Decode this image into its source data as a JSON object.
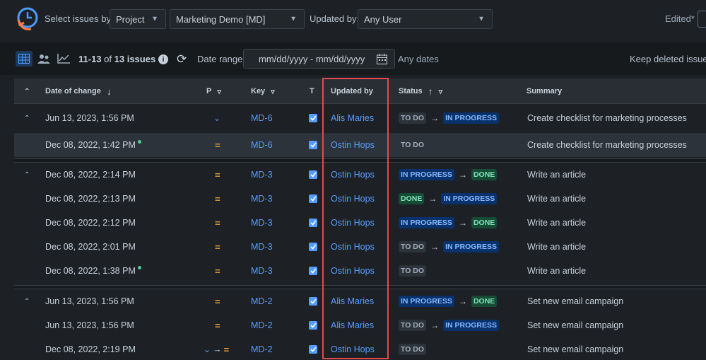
{
  "filters": {
    "select_issues_by_label": "Select issues by:",
    "select_issues_by_value": "Project",
    "project_value": "Marketing Demo [MD]",
    "updated_by_label": "Updated by:",
    "updated_by_value": "Any User",
    "edited_label": "Edited*"
  },
  "toolbar": {
    "issue_range": "11-13",
    "issue_of": "of",
    "issue_total": "13 issues",
    "date_range_label": "Date range:",
    "date_range_placeholder": "mm/dd/yyyy - mm/dd/yyyy",
    "any_dates": "Any dates",
    "keep_deleted": "Keep deleted issues"
  },
  "columns": {
    "date": "Date of change",
    "priority": "P",
    "key": "Key",
    "type": "T",
    "updated_by": "Updated by",
    "status": "Status",
    "summary": "Summary"
  },
  "rows": [
    {
      "date": "Jun 13, 2023, 1:56 PM",
      "priority": "low",
      "key": "MD-6",
      "user": "Alis Maries",
      "from": "TO DO",
      "to": "IN PROGRESS",
      "summary": "Create checklist for marketing processes"
    },
    {
      "date": "Dec 08, 2022, 1:42 PM",
      "priority": "medium",
      "key": "MD-6",
      "user": "Ostin Hops",
      "from": "TO DO",
      "to": "",
      "summary": "Create checklist for marketing processes"
    },
    {
      "date": "Dec 08, 2022, 2:14 PM",
      "priority": "medium",
      "key": "MD-3",
      "user": "Ostin Hops",
      "from": "IN PROGRESS",
      "to": "DONE",
      "summary": "Write an article"
    },
    {
      "date": "Dec 08, 2022, 2:13 PM",
      "priority": "medium",
      "key": "MD-3",
      "user": "Ostin Hops",
      "from": "DONE",
      "to": "IN PROGRESS",
      "summary": "Write an article"
    },
    {
      "date": "Dec 08, 2022, 2:12 PM",
      "priority": "medium",
      "key": "MD-3",
      "user": "Ostin Hops",
      "from": "IN PROGRESS",
      "to": "DONE",
      "summary": "Write an article"
    },
    {
      "date": "Dec 08, 2022, 2:01 PM",
      "priority": "medium",
      "key": "MD-3",
      "user": "Ostin Hops",
      "from": "TO DO",
      "to": "IN PROGRESS",
      "summary": "Write an article"
    },
    {
      "date": "Dec 08, 2022, 1:38 PM",
      "priority": "medium",
      "key": "MD-3",
      "user": "Ostin Hops",
      "from": "TO DO",
      "to": "",
      "summary": "Write an article"
    },
    {
      "date": "Jun 13, 2023, 1:56 PM",
      "priority": "medium",
      "key": "MD-2",
      "user": "Alis Maries",
      "from": "IN PROGRESS",
      "to": "DONE",
      "summary": "Set new email campaign"
    },
    {
      "date": "Jun 13, 2023, 1:56 PM",
      "priority": "medium",
      "key": "MD-2",
      "user": "Alis Maries",
      "from": "TO DO",
      "to": "IN PROGRESS",
      "summary": "Set new email campaign"
    },
    {
      "date": "Dec 08, 2022, 2:19 PM",
      "priority": "low-to-medium",
      "key": "MD-2",
      "user": "Ostin Hops",
      "from": "TO DO",
      "to": "",
      "summary": "Set new email campaign"
    }
  ],
  "colors": {
    "accent": "#579dff",
    "highlight": "#e5484d",
    "priority_medium": "#e2a03f"
  }
}
